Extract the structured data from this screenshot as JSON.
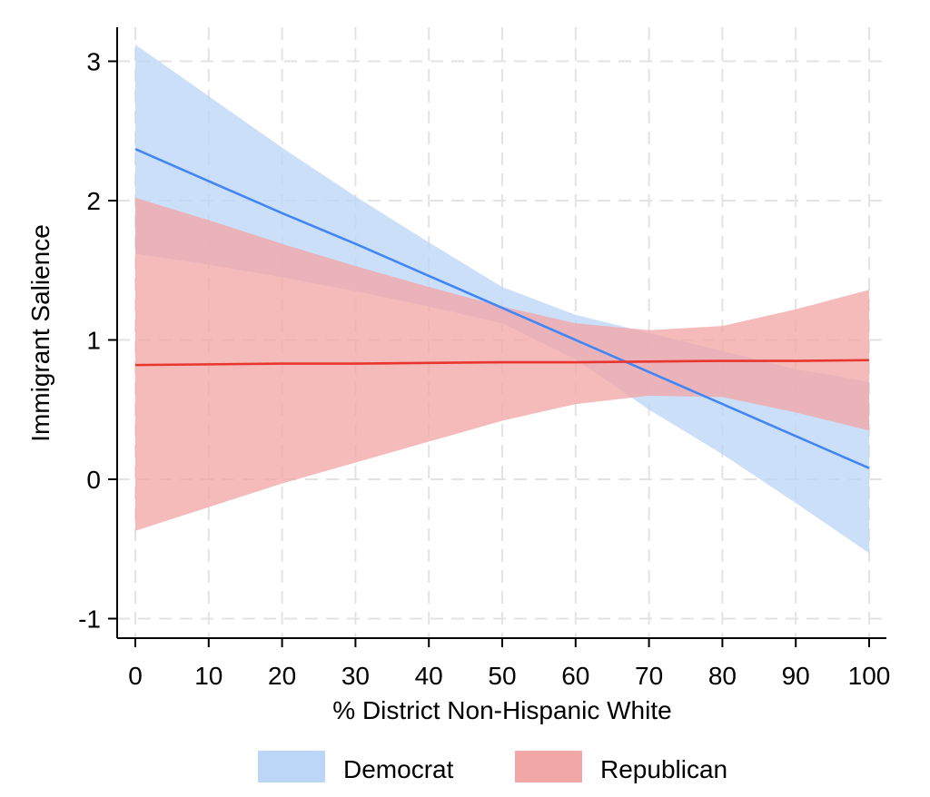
{
  "chart_data": {
    "type": "line",
    "title": "",
    "xlabel": "% District Non-Hispanic White",
    "ylabel": "Immigrant Salience",
    "xlim": [
      0,
      100
    ],
    "ylim": [
      -1.2,
      3.25
    ],
    "xticks": [
      0,
      10,
      20,
      30,
      40,
      50,
      60,
      70,
      80,
      90,
      100
    ],
    "yticks": [
      -1,
      0,
      1,
      2,
      3
    ],
    "grid": true,
    "legend_position": "bottom",
    "series": [
      {
        "name": "Democrat",
        "line_color": "#4286f4",
        "band_color": "#bcd6f7",
        "x": [
          0,
          10,
          20,
          30,
          40,
          50,
          60,
          70,
          80,
          90,
          100
        ],
        "y": [
          2.37,
          2.14,
          1.91,
          1.69,
          1.46,
          1.23,
          1.0,
          0.77,
          0.54,
          0.31,
          0.08
        ],
        "lower": [
          1.62,
          1.54,
          1.45,
          1.35,
          1.24,
          1.12,
          0.86,
          0.5,
          0.18,
          -0.17,
          -0.53
        ],
        "upper": [
          3.12,
          2.75,
          2.38,
          2.03,
          1.7,
          1.38,
          1.18,
          1.05,
          0.92,
          0.79,
          0.7
        ]
      },
      {
        "name": "Republican",
        "line_color": "#e8352e",
        "band_color": "#f2a7a7",
        "x": [
          0,
          10,
          20,
          30,
          40,
          50,
          60,
          70,
          80,
          90,
          100
        ],
        "y": [
          0.82,
          0.825,
          0.83,
          0.83,
          0.835,
          0.84,
          0.84,
          0.845,
          0.85,
          0.85,
          0.855
        ],
        "lower": [
          -0.37,
          -0.2,
          -0.03,
          0.12,
          0.27,
          0.42,
          0.54,
          0.6,
          0.59,
          0.48,
          0.35
        ],
        "upper": [
          2.02,
          1.86,
          1.69,
          1.53,
          1.38,
          1.24,
          1.12,
          1.07,
          1.1,
          1.22,
          1.36
        ]
      }
    ]
  }
}
